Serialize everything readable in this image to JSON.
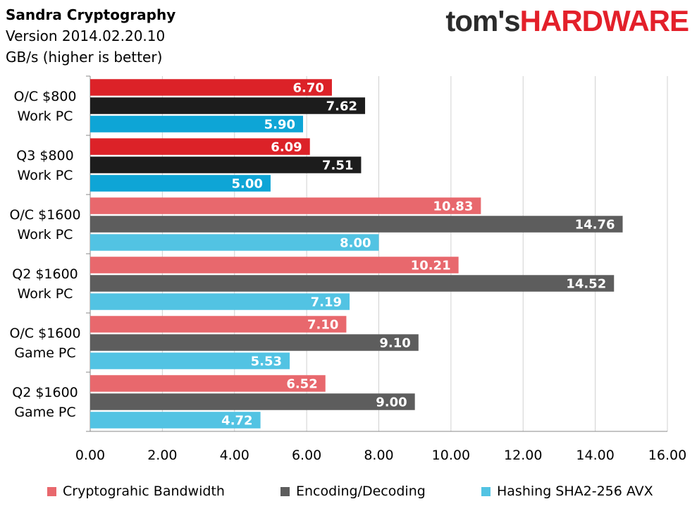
{
  "header": {
    "title": "Sandra Cryptography",
    "version": "Version 2014.02.20.10",
    "unit": "GB/s (higher is better)"
  },
  "logo": {
    "part1": "tom's",
    "part2": "HARDWARE"
  },
  "chart_data": {
    "type": "bar",
    "orientation": "horizontal",
    "categories": [
      [
        "O/C $800",
        "Work PC"
      ],
      [
        "Q3 $800",
        "Work PC"
      ],
      [
        "O/C $1600",
        "Work PC"
      ],
      [
        "Q2 $1600",
        "Work PC"
      ],
      [
        "O/C $1600",
        "Game PC"
      ],
      [
        "Q2 $1600",
        "Game PC"
      ]
    ],
    "series": [
      {
        "name": "Cryptograhic Bandwidth",
        "values": [
          6.7,
          6.09,
          10.83,
          10.21,
          7.1,
          6.52
        ]
      },
      {
        "name": "Encoding/Decoding",
        "values": [
          7.62,
          7.51,
          14.76,
          14.52,
          9.1,
          9.0
        ]
      },
      {
        "name": "Hashing SHA2-256 AVX",
        "values": [
          5.9,
          5.0,
          8.0,
          7.19,
          5.53,
          4.72
        ]
      }
    ],
    "bar_colors": [
      [
        "#dc2228",
        "#1c1c1c",
        "#0ea5d6"
      ],
      [
        "#dc2228",
        "#1c1c1c",
        "#0ea5d6"
      ],
      [
        "#e8686d",
        "#5d5d5d",
        "#52c3e3"
      ],
      [
        "#e8686d",
        "#5d5d5d",
        "#52c3e3"
      ],
      [
        "#e8686d",
        "#5d5d5d",
        "#52c3e3"
      ],
      [
        "#e8686d",
        "#5d5d5d",
        "#52c3e3"
      ]
    ],
    "legend_colors": [
      "#e8686d",
      "#5d5d5d",
      "#52c3e3"
    ],
    "xlim": [
      0,
      16
    ],
    "xticks": [
      "0.00",
      "2.00",
      "4.00",
      "6.00",
      "8.00",
      "10.00",
      "12.00",
      "14.00",
      "16.00"
    ],
    "grid": true,
    "legend_position": "bottom"
  }
}
